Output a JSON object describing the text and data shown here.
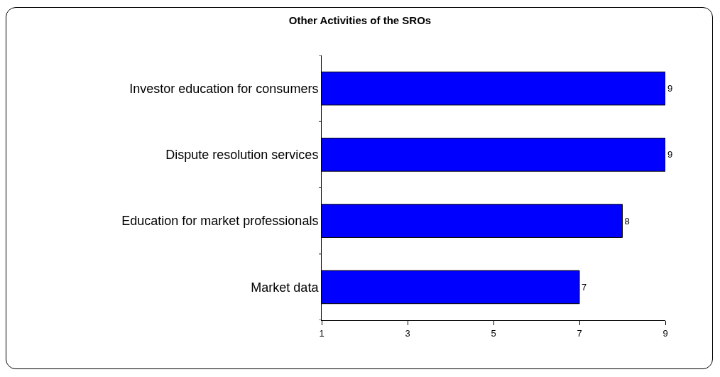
{
  "chart_data": {
    "type": "bar",
    "orientation": "horizontal",
    "title": "Other Activities of the SROs",
    "categories": [
      "Investor education for consumers",
      "Dispute resolution services",
      "Education for market professionals",
      "Market data"
    ],
    "values": [
      9,
      9,
      8,
      7
    ],
    "color": "#0000ff",
    "xlim": [
      1,
      9
    ],
    "xticks": [
      1,
      3,
      5,
      7,
      9
    ],
    "grid": false,
    "data_labels": true
  }
}
